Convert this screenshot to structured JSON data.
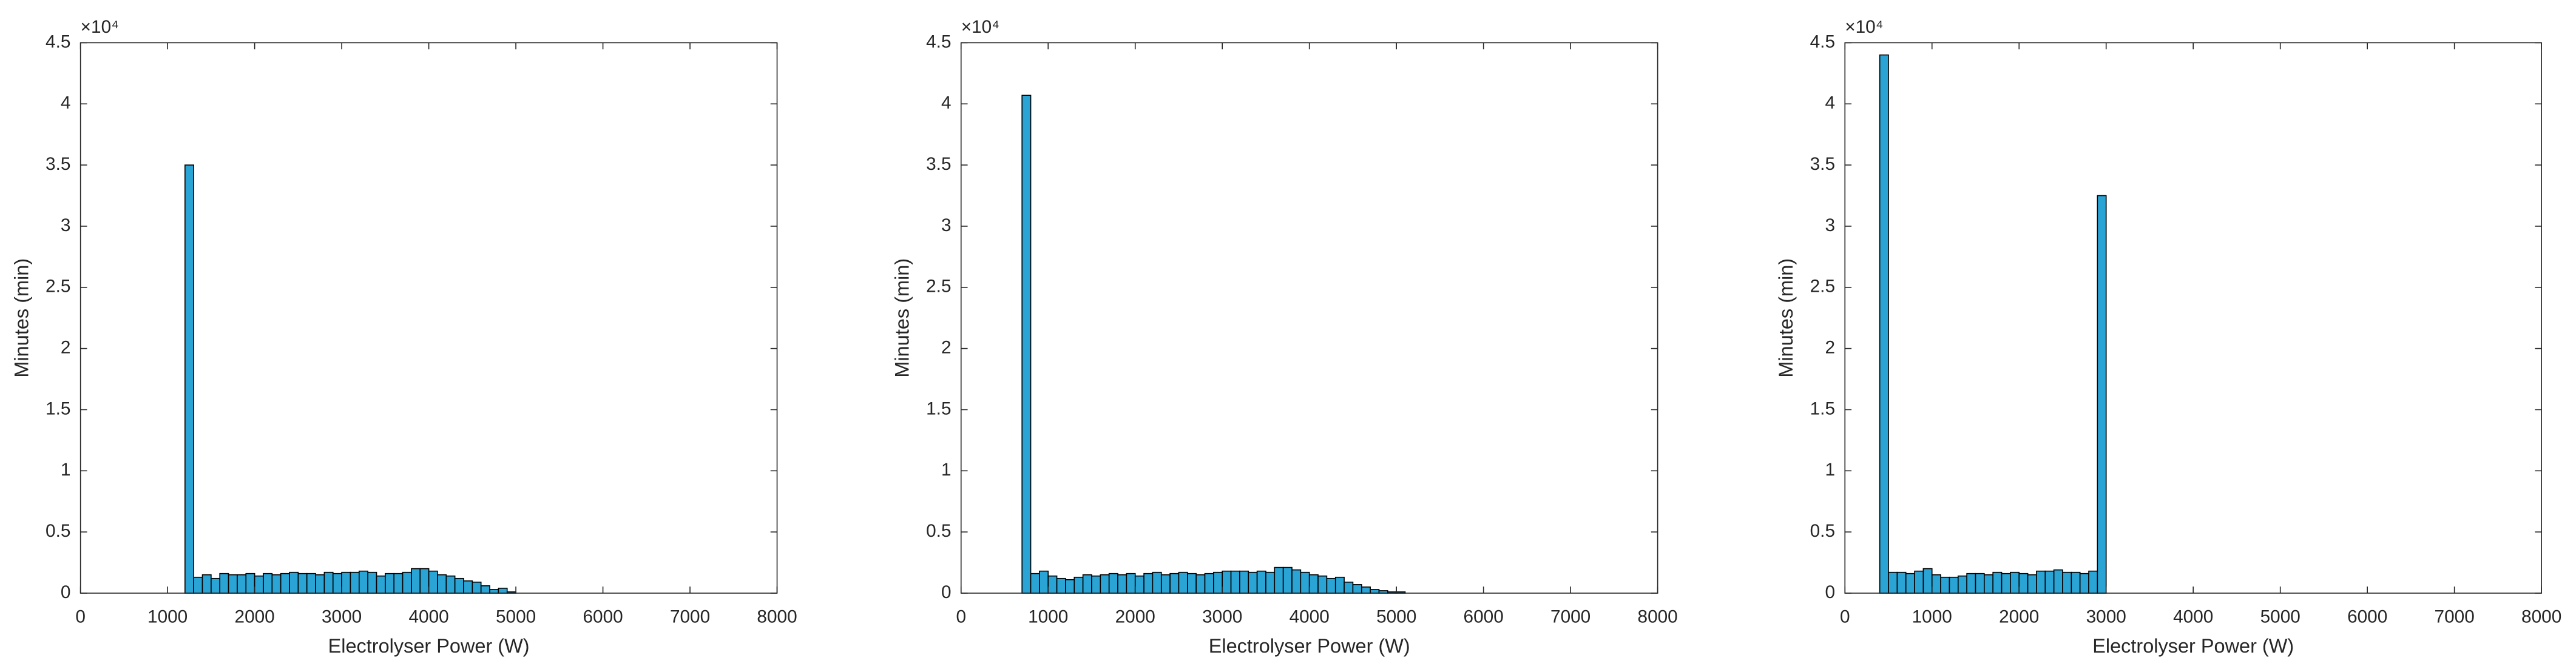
{
  "chart_data": [
    {
      "type": "histogram",
      "xlabel": "Electrolyser Power (W)",
      "ylabel": "Minutes (min)",
      "y_multiplier": "×10⁴",
      "color": "#2aa4d5",
      "edgecolor": "#000000",
      "xlim": [
        0,
        8000
      ],
      "ylim": [
        0,
        45000
      ],
      "xticks": [
        0,
        1000,
        2000,
        3000,
        4000,
        5000,
        6000,
        7000,
        8000
      ],
      "yticks": [
        {
          "value": 0,
          "label": "0"
        },
        {
          "value": 5000,
          "label": "0.5"
        },
        {
          "value": 10000,
          "label": "1"
        },
        {
          "value": 15000,
          "label": "1.5"
        },
        {
          "value": 20000,
          "label": "2"
        },
        {
          "value": 25000,
          "label": "2.5"
        },
        {
          "value": 30000,
          "label": "3"
        },
        {
          "value": 35000,
          "label": "3.5"
        },
        {
          "value": 40000,
          "label": "4"
        },
        {
          "value": 45000,
          "label": "4.5"
        }
      ],
      "bins": [
        1200,
        1300,
        1400,
        1500,
        1600,
        1700,
        1800,
        1900,
        2000,
        2100,
        2200,
        2300,
        2400,
        2500,
        2600,
        2700,
        2800,
        2900,
        3000,
        3100,
        3200,
        3300,
        3400,
        3500,
        3600,
        3700,
        3800,
        3900,
        4000,
        4100,
        4200,
        4300,
        4400,
        4500,
        4600,
        4700,
        4800,
        4900,
        5000
      ],
      "values": [
        35000,
        1300,
        1500,
        1200,
        1600,
        1500,
        1500,
        1600,
        1400,
        1600,
        1500,
        1600,
        1700,
        1600,
        1600,
        1500,
        1700,
        1600,
        1700,
        1700,
        1800,
        1700,
        1400,
        1600,
        1600,
        1700,
        2000,
        2000,
        1800,
        1500,
        1400,
        1200,
        1000,
        900,
        600,
        300,
        400,
        100
      ]
    },
    {
      "type": "histogram",
      "xlabel": "Electrolyser Power (W)",
      "ylabel": "Minutes (min)",
      "y_multiplier": "×10⁴",
      "color": "#2aa4d5",
      "edgecolor": "#000000",
      "xlim": [
        0,
        8000
      ],
      "ylim": [
        0,
        45000
      ],
      "xticks": [
        0,
        1000,
        2000,
        3000,
        4000,
        5000,
        6000,
        7000,
        8000
      ],
      "yticks": [
        {
          "value": 0,
          "label": "0"
        },
        {
          "value": 5000,
          "label": "0.5"
        },
        {
          "value": 10000,
          "label": "1"
        },
        {
          "value": 15000,
          "label": "1.5"
        },
        {
          "value": 20000,
          "label": "2"
        },
        {
          "value": 25000,
          "label": "2.5"
        },
        {
          "value": 30000,
          "label": "3"
        },
        {
          "value": 35000,
          "label": "3.5"
        },
        {
          "value": 40000,
          "label": "4"
        },
        {
          "value": 45000,
          "label": "4.5"
        }
      ],
      "bins": [
        700,
        800,
        900,
        1000,
        1100,
        1200,
        1300,
        1400,
        1500,
        1600,
        1700,
        1800,
        1900,
        2000,
        2100,
        2200,
        2300,
        2400,
        2500,
        2600,
        2700,
        2800,
        2900,
        3000,
        3100,
        3200,
        3300,
        3400,
        3500,
        3600,
        3700,
        3800,
        3900,
        4000,
        4100,
        4200,
        4300,
        4400,
        4500,
        4600,
        4700,
        4800,
        4900,
        5000,
        5100
      ],
      "values": [
        40700,
        1600,
        1800,
        1400,
        1200,
        1100,
        1300,
        1500,
        1400,
        1500,
        1600,
        1500,
        1600,
        1400,
        1600,
        1700,
        1500,
        1600,
        1700,
        1600,
        1500,
        1600,
        1700,
        1800,
        1800,
        1800,
        1700,
        1800,
        1700,
        2100,
        2100,
        1900,
        1700,
        1500,
        1400,
        1200,
        1300,
        900,
        700,
        500,
        300,
        200,
        100,
        100
      ]
    },
    {
      "type": "histogram",
      "xlabel": "Electrolyser Power (W)",
      "ylabel": "Minutes (min)",
      "y_multiplier": "×10⁴",
      "color": "#2aa4d5",
      "edgecolor": "#000000",
      "xlim": [
        0,
        8000
      ],
      "ylim": [
        0,
        45000
      ],
      "xticks": [
        0,
        1000,
        2000,
        3000,
        4000,
        5000,
        6000,
        7000,
        8000
      ],
      "yticks": [
        {
          "value": 0,
          "label": "0"
        },
        {
          "value": 5000,
          "label": "0.5"
        },
        {
          "value": 10000,
          "label": "1"
        },
        {
          "value": 15000,
          "label": "1.5"
        },
        {
          "value": 20000,
          "label": "2"
        },
        {
          "value": 25000,
          "label": "2.5"
        },
        {
          "value": 30000,
          "label": "3"
        },
        {
          "value": 35000,
          "label": "3.5"
        },
        {
          "value": 40000,
          "label": "4"
        },
        {
          "value": 45000,
          "label": "4.5"
        }
      ],
      "bins": [
        400,
        500,
        600,
        700,
        800,
        900,
        1000,
        1100,
        1200,
        1300,
        1400,
        1500,
        1600,
        1700,
        1800,
        1900,
        2000,
        2100,
        2200,
        2300,
        2400,
        2500,
        2600,
        2700,
        2800,
        2900,
        3000
      ],
      "values": [
        44000,
        1700,
        1700,
        1600,
        1800,
        2000,
        1500,
        1300,
        1300,
        1400,
        1600,
        1600,
        1500,
        1700,
        1600,
        1700,
        1600,
        1500,
        1800,
        1800,
        1900,
        1700,
        1700,
        1600,
        1800,
        32500
      ]
    }
  ]
}
